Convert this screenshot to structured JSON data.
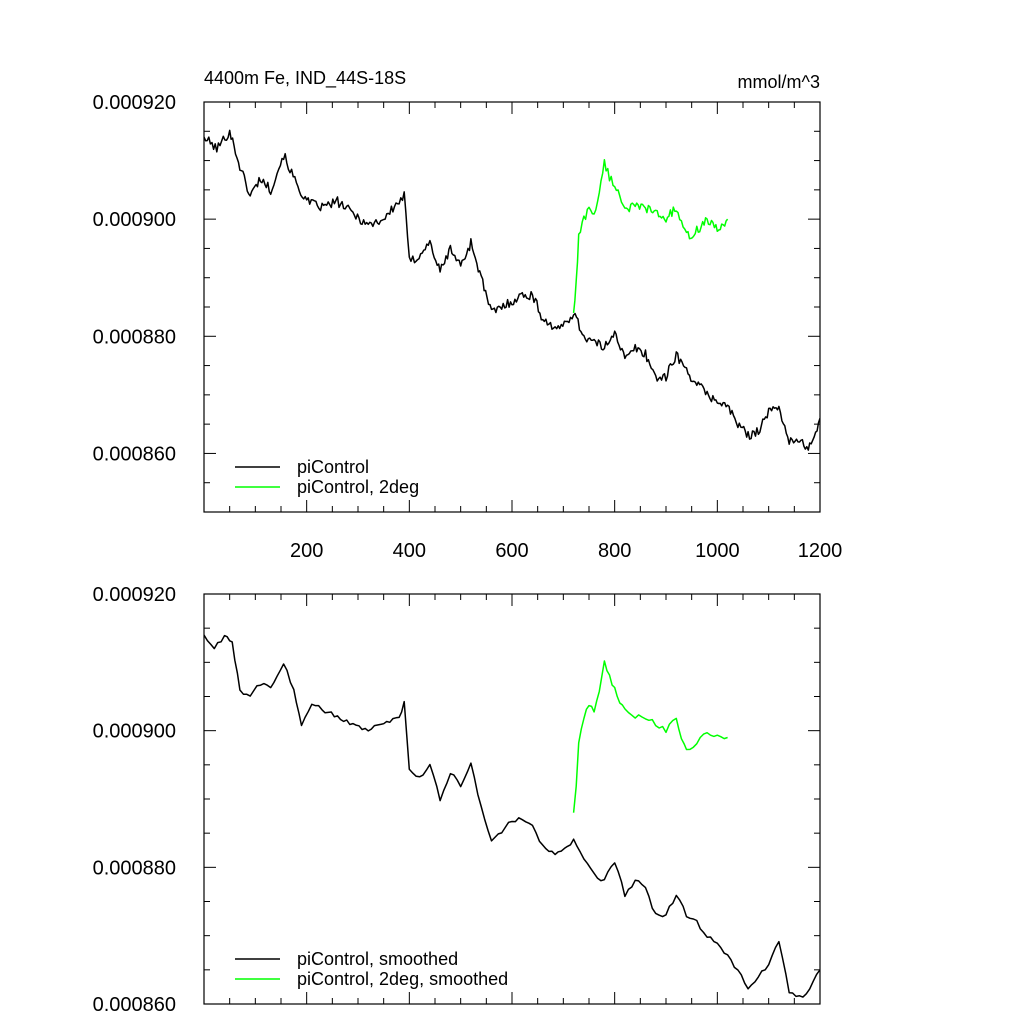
{
  "title_left": "4400m Fe, IND_44S-18S",
  "title_right": "mmol/m^3",
  "colors": {
    "control": "#000000",
    "twodeg": "#00ff00",
    "axis": "#000000",
    "background": "#ffffff"
  },
  "chart_data": [
    {
      "type": "line",
      "panel": "top",
      "xlim": [
        0,
        1200
      ],
      "ylim": [
        0.00085,
        0.00092
      ],
      "x_ticks": [
        "200",
        "400",
        "600",
        "800",
        "1000",
        "1200"
      ],
      "y_ticks": [
        "0.000920",
        "0.000900",
        "0.000880",
        "0.000860"
      ],
      "grid": false,
      "legend_position": "bottom-left",
      "series": [
        {
          "name": "piControl",
          "color": "#000000",
          "x": [
            0,
            25,
            50,
            70,
            90,
            110,
            130,
            155,
            180,
            200,
            230,
            260,
            290,
            320,
            350,
            380,
            390,
            400,
            410,
            440,
            460,
            480,
            500,
            520,
            540,
            560,
            580,
            600,
            620,
            640,
            660,
            690,
            720,
            740,
            760,
            780,
            800,
            820,
            840,
            860,
            880,
            900,
            920,
            940,
            960,
            980,
            1000,
            1020,
            1040,
            1060,
            1080,
            1100,
            1120,
            1140,
            1160,
            1180,
            1200
          ],
          "y": [
            0.000914,
            0.000912,
            0.000915,
            0.000909,
            0.000904,
            0.000907,
            0.000905,
            0.000911,
            0.000906,
            0.000903,
            0.000902,
            0.000903,
            0.000901,
            0.000899,
            0.0009,
            0.000903,
            0.000904,
            0.000893,
            0.000893,
            0.000896,
            0.000891,
            0.000895,
            0.000892,
            0.000896,
            0.00089,
            0.000884,
            0.000885,
            0.000886,
            0.000887,
            0.000887,
            0.000883,
            0.000881,
            0.000884,
            0.00088,
            0.000879,
            0.000878,
            0.000881,
            0.000876,
            0.000878,
            0.000877,
            0.000873,
            0.000873,
            0.000877,
            0.000874,
            0.000872,
            0.00087,
            0.000869,
            0.000868,
            0.000865,
            0.000863,
            0.000864,
            0.000867,
            0.000868,
            0.000862,
            0.000862,
            0.000861,
            0.000866
          ]
        },
        {
          "name": "piControl, 2deg",
          "color": "#00ff00",
          "x": [
            720,
            725,
            730,
            740,
            750,
            760,
            770,
            780,
            790,
            800,
            810,
            820,
            840,
            860,
            880,
            900,
            920,
            930,
            940,
            960,
            980,
            1000,
            1020
          ],
          "y": [
            0.000884,
            0.000889,
            0.000897,
            0.0009,
            0.000902,
            0.000901,
            0.000904,
            0.00091,
            0.000907,
            0.000906,
            0.000904,
            0.000902,
            0.000902,
            0.000902,
            0.000901,
            0.0009,
            0.000902,
            0.000899,
            0.000897,
            0.000898,
            0.0009,
            0.000898,
            0.0009
          ]
        }
      ]
    },
    {
      "type": "line",
      "panel": "bottom",
      "xlim": [
        0,
        1200
      ],
      "ylim": [
        0.00086,
        0.00092
      ],
      "y_ticks": [
        "0.000920",
        "0.000900",
        "0.000880",
        "0.000860"
      ],
      "grid": false,
      "legend_position": "bottom-left",
      "series": [
        {
          "name": "piControl, smoothed",
          "color": "#000000",
          "x": [
            0,
            20,
            40,
            55,
            70,
            90,
            110,
            130,
            155,
            175,
            190,
            210,
            230,
            260,
            290,
            320,
            350,
            380,
            390,
            400,
            420,
            440,
            460,
            480,
            500,
            520,
            540,
            560,
            580,
            600,
            620,
            640,
            660,
            690,
            720,
            740,
            760,
            780,
            800,
            820,
            840,
            860,
            880,
            900,
            920,
            940,
            960,
            980,
            1000,
            1020,
            1040,
            1060,
            1080,
            1100,
            1120,
            1140,
            1160,
            1180,
            1200
          ],
          "y": [
            0.000914,
            0.000912,
            0.000914,
            0.000913,
            0.000906,
            0.000905,
            0.000907,
            0.000906,
            0.00091,
            0.000906,
            0.000901,
            0.000904,
            0.000903,
            0.000902,
            0.000901,
            0.0009,
            0.000901,
            0.000902,
            0.000904,
            0.000894,
            0.000893,
            0.000895,
            0.00089,
            0.000894,
            0.000892,
            0.000895,
            0.000889,
            0.000884,
            0.000885,
            0.000887,
            0.000887,
            0.000886,
            0.000883,
            0.000882,
            0.000884,
            0.000881,
            0.000879,
            0.000878,
            0.000881,
            0.000876,
            0.000878,
            0.000877,
            0.000873,
            0.000873,
            0.000876,
            0.000873,
            0.000872,
            0.00087,
            0.000869,
            0.000867,
            0.000865,
            0.000862,
            0.000864,
            0.000866,
            0.000869,
            0.000862,
            0.000861,
            0.000862,
            0.000865
          ]
        },
        {
          "name": "piControl, 2deg, smoothed",
          "color": "#00ff00",
          "x": [
            720,
            725,
            730,
            740,
            750,
            760,
            770,
            780,
            790,
            800,
            810,
            820,
            840,
            860,
            880,
            900,
            920,
            930,
            940,
            960,
            980,
            1000,
            1020
          ],
          "y": [
            0.000888,
            0.000892,
            0.000898,
            0.000902,
            0.000904,
            0.000903,
            0.000906,
            0.00091,
            0.000908,
            0.000906,
            0.000904,
            0.000903,
            0.000902,
            0.000902,
            0.000901,
            0.0009,
            0.000902,
            0.000899,
            0.000897,
            0.000898,
            0.0009,
            0.000899,
            0.000899
          ]
        }
      ]
    }
  ]
}
